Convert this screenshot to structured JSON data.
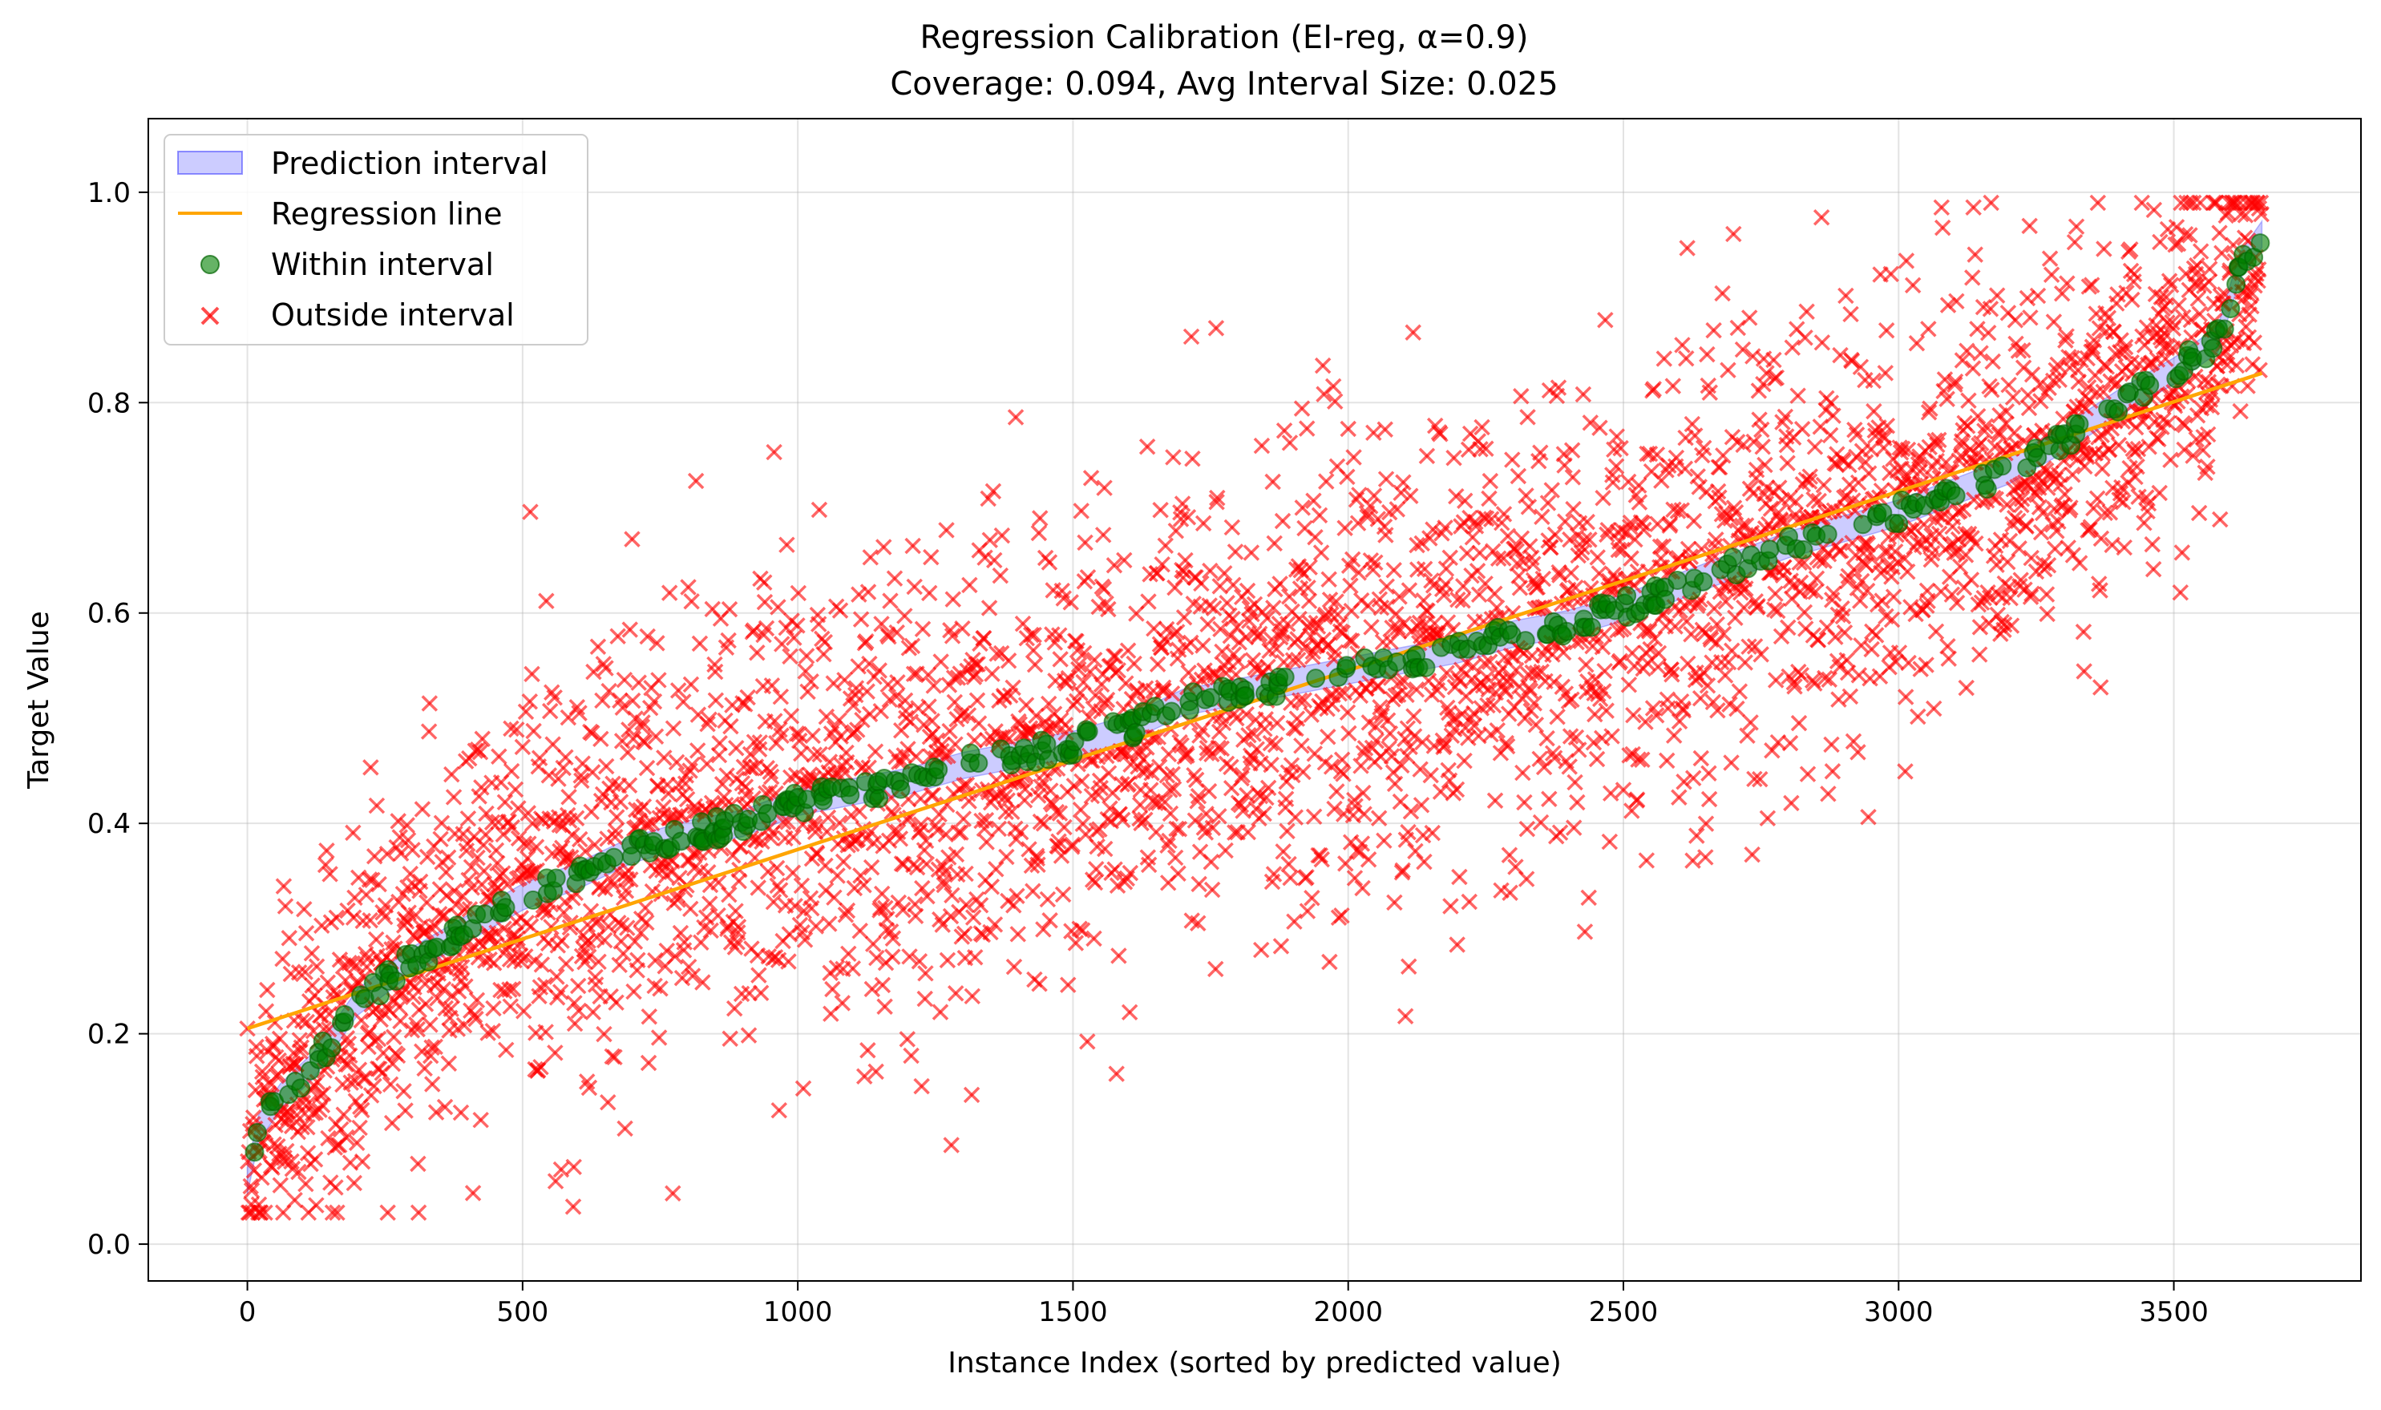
{
  "chart_data": {
    "type": "scatter",
    "title": "Regression Calibration (EI-reg, α=0.9)",
    "subtitle": "Coverage: 0.094, Avg Interval Size: 0.025",
    "xlabel": "Instance Index (sorted by predicted value)",
    "ylabel": "Target Value",
    "xlim": [
      -180,
      3840
    ],
    "ylim": [
      -0.035,
      1.07
    ],
    "x_ticks": [
      "0",
      "500",
      "1000",
      "1500",
      "2000",
      "2500",
      "3000",
      "3500"
    ],
    "x_tick_values": [
      0,
      500,
      1000,
      1500,
      2000,
      2500,
      3000,
      3500
    ],
    "y_ticks": [
      "0.0",
      "0.2",
      "0.4",
      "0.6",
      "0.8",
      "1.0"
    ],
    "y_tick_values": [
      0.0,
      0.2,
      0.4,
      0.6,
      0.8,
      1.0
    ],
    "grid": true,
    "legend_placement": "top-left",
    "n_instances": 3660,
    "series": [
      {
        "name": "Prediction interval",
        "kind": "band",
        "color": "#0000ff",
        "interval_half_width": 0.0125
      },
      {
        "name": "Regression line",
        "kind": "line",
        "color": "#ffa500",
        "x": [
          0,
          3660
        ],
        "y": [
          0.205,
          0.828
        ]
      },
      {
        "name": "Within interval",
        "kind": "points",
        "color": "#008000"
      },
      {
        "name": "Outside interval",
        "kind": "points",
        "color": "#ff0000"
      }
    ],
    "predicted_curve": {
      "x": [
        0,
        20,
        60,
        120,
        200,
        300,
        400,
        500,
        600,
        700,
        800,
        900,
        1000,
        1100,
        1200,
        1300,
        1400,
        1500,
        1600,
        1700,
        1800,
        1900,
        2000,
        2100,
        2200,
        2300,
        2400,
        2500,
        2600,
        2700,
        2800,
        2900,
        3000,
        3100,
        3200,
        3300,
        3400,
        3500,
        3580,
        3620,
        3660
      ],
      "y": [
        0.06,
        0.11,
        0.14,
        0.17,
        0.23,
        0.27,
        0.3,
        0.33,
        0.35,
        0.375,
        0.39,
        0.4,
        0.42,
        0.43,
        0.44,
        0.455,
        0.465,
        0.475,
        0.49,
        0.515,
        0.525,
        0.535,
        0.545,
        0.555,
        0.565,
        0.58,
        0.59,
        0.605,
        0.625,
        0.645,
        0.665,
        0.68,
        0.695,
        0.715,
        0.735,
        0.765,
        0.8,
        0.83,
        0.86,
        0.93,
        0.96
      ]
    },
    "residual_spread": [
      {
        "x_range": [
          0,
          500
        ],
        "sd": 0.08
      },
      {
        "x_range": [
          500,
          3000
        ],
        "sd": 0.11
      },
      {
        "x_range": [
          3000,
          3660
        ],
        "sd": 0.09
      }
    ],
    "coverage": 0.094,
    "avg_interval_size": 0.025
  },
  "legend": {
    "items": [
      {
        "label": "Prediction interval"
      },
      {
        "label": "Regression line"
      },
      {
        "label": "Within interval"
      },
      {
        "label": "Outside interval"
      }
    ]
  }
}
